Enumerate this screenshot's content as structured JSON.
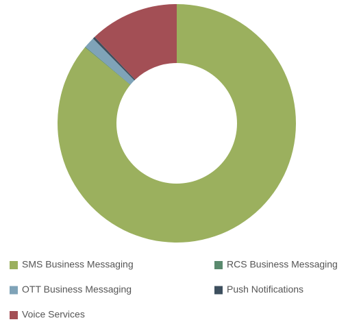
{
  "chart_data": {
    "type": "donut",
    "series": [
      {
        "name": "SMS Business Messaging",
        "color": "#9bb05e",
        "values": [
          86.0
        ]
      },
      {
        "name": "RCS Business Messaging",
        "color": "#5a8a6e",
        "values": [
          0.1
        ]
      },
      {
        "name": "OTT Business Messaging",
        "color": "#7fa3b8",
        "values": [
          1.5
        ]
      },
      {
        "name": "Push Notifications",
        "color": "#3d4f5e",
        "values": [
          0.3
        ]
      },
      {
        "name": "Voice Services",
        "color": "#a34f55",
        "values": [
          12.1
        ]
      }
    ]
  }
}
